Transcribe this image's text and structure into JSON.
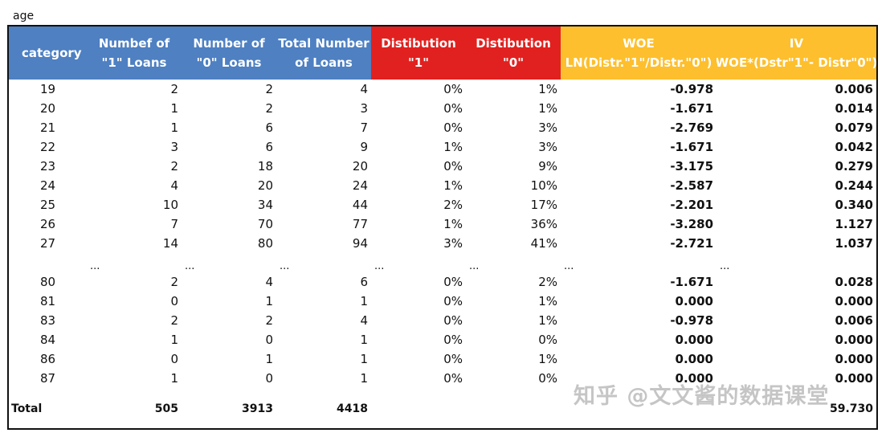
{
  "caption": "age",
  "header": {
    "category": "category",
    "col1": [
      "Numbef of",
      "\"1\" Loans"
    ],
    "col2": [
      "Number of",
      "\"0\" Loans"
    ],
    "col3": [
      "Total Number",
      "of Loans"
    ],
    "col4": [
      "Distibution",
      "\"1\""
    ],
    "col5": [
      "Distibution",
      "\"0\""
    ],
    "col6": [
      "WOE",
      "LN(Distr.\"1\"/Distr.\"0\")"
    ],
    "col7": [
      "IV",
      "WOE*(Dstr\"1\"- Distr\"0\")"
    ]
  },
  "colors": {
    "blue_header": "#4e80c2",
    "red_header": "#e1211f",
    "yellow_header": "#fdbf2d"
  },
  "rows_top": [
    [
      "19",
      "2",
      "2",
      "4",
      "0%",
      "1%",
      "-0.978",
      "0.006"
    ],
    [
      "20",
      "1",
      "2",
      "3",
      "0%",
      "1%",
      "-1.671",
      "0.014"
    ],
    [
      "21",
      "1",
      "6",
      "7",
      "0%",
      "3%",
      "-2.769",
      "0.079"
    ],
    [
      "22",
      "3",
      "6",
      "9",
      "1%",
      "3%",
      "-1.671",
      "0.042"
    ],
    [
      "23",
      "2",
      "18",
      "20",
      "0%",
      "9%",
      "-3.175",
      "0.279"
    ],
    [
      "24",
      "4",
      "20",
      "24",
      "1%",
      "10%",
      "-2.587",
      "0.244"
    ],
    [
      "25",
      "10",
      "34",
      "44",
      "2%",
      "17%",
      "-2.201",
      "0.340"
    ],
    [
      "26",
      "7",
      "70",
      "77",
      "1%",
      "36%",
      "-3.280",
      "1.127"
    ],
    [
      "27",
      "14",
      "80",
      "94",
      "3%",
      "41%",
      "-2.721",
      "1.037"
    ]
  ],
  "ellipsis": [
    "...",
    "...",
    "...",
    "...",
    "...",
    "...",
    "..."
  ],
  "rows_bottom": [
    [
      "80",
      "2",
      "4",
      "6",
      "0%",
      "2%",
      "-1.671",
      "0.028"
    ],
    [
      "81",
      "0",
      "1",
      "1",
      "0%",
      "1%",
      "0.000",
      "0.000"
    ],
    [
      "83",
      "2",
      "2",
      "4",
      "0%",
      "1%",
      "-0.978",
      "0.006"
    ],
    [
      "84",
      "1",
      "0",
      "1",
      "0%",
      "0%",
      "0.000",
      "0.000"
    ],
    [
      "86",
      "0",
      "1",
      "1",
      "0%",
      "1%",
      "0.000",
      "0.000"
    ],
    [
      "87",
      "1",
      "0",
      "1",
      "0%",
      "0%",
      "0.000",
      "0.000"
    ]
  ],
  "total": {
    "label": "Total",
    "ones": "505",
    "zeros": "3913",
    "all": "4418",
    "iv": "59.730"
  },
  "watermark": "知乎 @文文酱的数据课堂"
}
